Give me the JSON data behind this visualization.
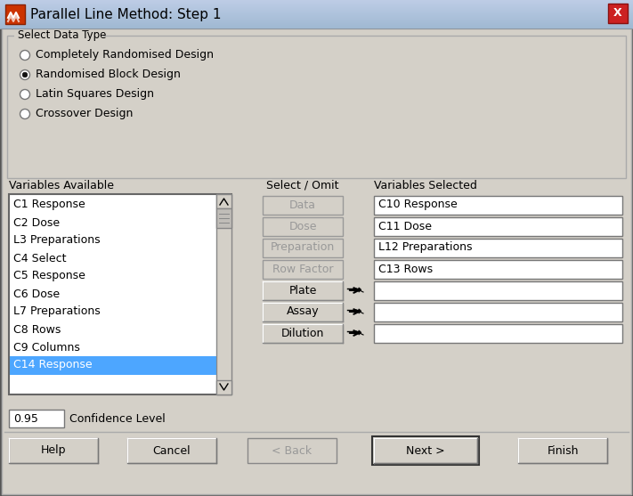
{
  "title": "Parallel Line Method: Step 1",
  "bg_color": "#d4d0c8",
  "header_gradient_top": "#a8c0d8",
  "header_gradient_bot": "#7090b8",
  "close_btn_color": "#c03020",
  "group_box_label": "Select Data Type",
  "radio_options": [
    "Completely Randomised Design",
    "Randomised Block Design",
    "Latin Squares Design",
    "Crossover Design"
  ],
  "radio_selected": 1,
  "left_label": "Variables Available",
  "left_list": [
    "C1 Response",
    "C2 Dose",
    "L3 Preparations",
    "C4 Select",
    "C5 Response",
    "C6 Dose",
    "L7 Preparations",
    "C8 Rows",
    "C9 Columns",
    "C14 Response"
  ],
  "selected_item": "C14 Response",
  "selected_item_bg": "#4da6ff",
  "middle_label": "Select / Omit",
  "middle_buttons": [
    "Data",
    "Dose",
    "Preparation",
    "Row Factor",
    "Plate",
    "Assay",
    "Dilution"
  ],
  "disabled_buttons": [
    "Data",
    "Dose",
    "Preparation",
    "Row Factor"
  ],
  "right_label": "Variables Selected",
  "right_fields": [
    "C10 Response",
    "C11 Dose",
    "L12 Preparations",
    "C13 Rows",
    "",
    "",
    ""
  ],
  "confidence_label": "Confidence Level",
  "confidence_value": "0.95",
  "bottom_buttons": [
    "Help",
    "Cancel",
    "< Back",
    "Next >",
    "Finish"
  ],
  "next_btn_index": 3,
  "back_btn_index": 2,
  "list_bg": "#ffffff",
  "field_bg": "#ffffff",
  "button_bg": "#d4d0c8",
  "disabled_text_color": "#999999",
  "normal_text_color": "#000000"
}
